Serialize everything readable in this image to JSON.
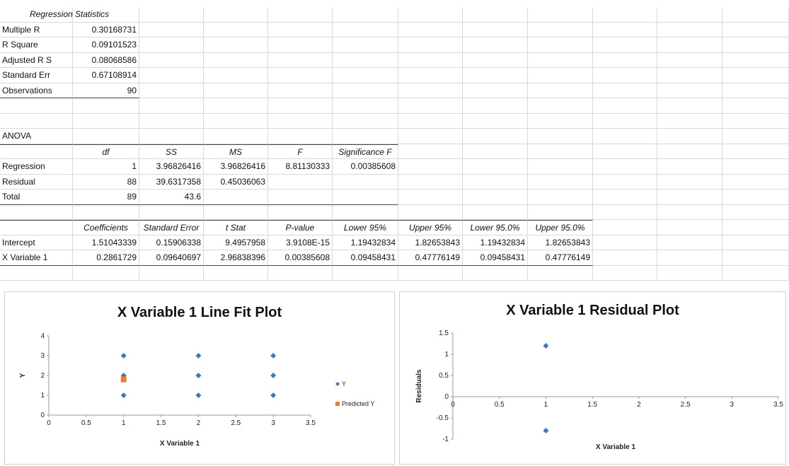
{
  "regression_statistics": {
    "header": "Regression Statistics",
    "rows": [
      {
        "label": "Multiple R",
        "value": "0.30168731"
      },
      {
        "label": "R Square",
        "value": "0.09101523"
      },
      {
        "label": "Adjusted R S",
        "value": "0.08068586"
      },
      {
        "label": "Standard Err",
        "value": "0.67108914"
      },
      {
        "label": "Observations",
        "value": "90"
      }
    ]
  },
  "anova": {
    "title": "ANOVA",
    "headers": [
      "",
      "df",
      "SS",
      "MS",
      "F",
      "Significance F"
    ],
    "rows": [
      [
        "Regression",
        "1",
        "3.96826416",
        "3.96826416",
        "8.81130333",
        "0.00385608"
      ],
      [
        "Residual",
        "88",
        "39.6317358",
        "0.45036063",
        "",
        ""
      ],
      [
        "Total",
        "89",
        "43.6",
        "",
        "",
        ""
      ]
    ]
  },
  "coefficients": {
    "headers": [
      "",
      "Coefficients",
      "Standard Error",
      "t Stat",
      "P-value",
      "Lower 95%",
      "Upper 95%",
      "Lower 95.0%",
      "Upper 95.0%"
    ],
    "rows": [
      [
        "Intercept",
        "1.51043339",
        "0.15906338",
        "9.4957958",
        "3.9108E-15",
        "1.19432834",
        "1.82653843",
        "1.19432834",
        "1.82653843"
      ],
      [
        "X Variable 1",
        "0.2861729",
        "0.09640697",
        "2.96838396",
        "0.00385608",
        "0.09458431",
        "0.47776149",
        "0.09458431",
        "0.47776149"
      ]
    ]
  },
  "chart_data": [
    {
      "type": "scatter",
      "title": "X Variable 1 Line Fit  Plot",
      "xlabel": "X Variable 1",
      "ylabel": "Y",
      "xlim": [
        0,
        3.5
      ],
      "ylim": [
        0,
        4
      ],
      "xticks": [
        "0",
        "0.5",
        "1",
        "1.5",
        "2",
        "2.5",
        "3",
        "3.5"
      ],
      "yticks": [
        "0",
        "1",
        "2",
        "3",
        "4"
      ],
      "legend": "right",
      "series": [
        {
          "name": "Y",
          "color": "#4472c4",
          "marker": "diamond",
          "x": [
            1,
            1,
            1,
            2,
            2,
            2,
            3,
            3,
            3
          ],
          "y": [
            1,
            2,
            3,
            1,
            2,
            3,
            1,
            2,
            3
          ]
        },
        {
          "name": "Predicted Y",
          "color": "#ed7d31",
          "marker": "square",
          "x": [
            1
          ],
          "y": [
            1.8
          ]
        }
      ]
    },
    {
      "type": "scatter",
      "title": "X Variable 1  Residual Plot",
      "xlabel": "X Variable 1",
      "ylabel": "Residuals",
      "xlim": [
        0,
        3.5
      ],
      "ylim": [
        -1,
        1.5
      ],
      "xticks": [
        "0",
        "0.5",
        "1",
        "1.5",
        "2",
        "2.5",
        "3",
        "3.5"
      ],
      "yticks": [
        "-1",
        "-0.5",
        "0",
        "0.5",
        "1",
        "1.5"
      ],
      "series": [
        {
          "color": "#4472c4",
          "marker": "diamond",
          "x": [
            1,
            1
          ],
          "y": [
            1.2,
            -0.8
          ]
        }
      ]
    }
  ]
}
